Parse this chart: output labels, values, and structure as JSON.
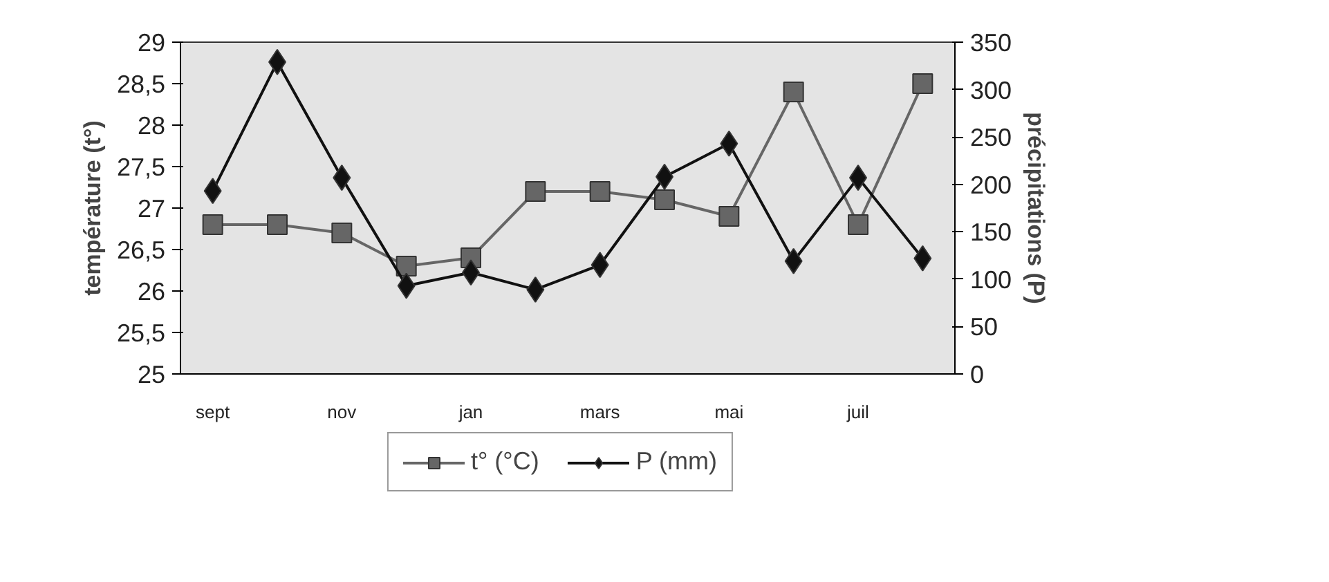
{
  "chart_data": {
    "type": "line",
    "categories": [
      "sept",
      null,
      "nov",
      null,
      "jan",
      null,
      "mars",
      null,
      "mai",
      null,
      "juil",
      null
    ],
    "ylabel": "température (t°)",
    "y2label": "précipitations (P)",
    "ylim": [
      25,
      29
    ],
    "yticks": [
      25,
      {
        "value": 25.5,
        "label": "25,5"
      },
      26,
      {
        "value": 26.5,
        "label": "26,5"
      },
      27,
      {
        "value": 27.5,
        "label": "27,5"
      },
      28,
      {
        "value": 28.5,
        "label": "28,5"
      },
      29
    ],
    "y2lim": [
      0,
      350
    ],
    "y2ticks": [
      0,
      50,
      100,
      150,
      200,
      250,
      300,
      350
    ],
    "series": [
      {
        "name": "t° (°C)",
        "color": "#666666",
        "marker": "square",
        "values": [
          26.8,
          26.8,
          26.7,
          26.3,
          26.4,
          27.2,
          27.2,
          27.1,
          26.9,
          28.4,
          26.8,
          28.5
        ]
      },
      {
        "name": "P (mm)",
        "color": "#111111",
        "marker": "diamond",
        "axis": "y2",
        "values": [
          193,
          329,
          207,
          93,
          107,
          89,
          115,
          208,
          243,
          119,
          207,
          122
        ]
      }
    ],
    "grid": false,
    "legend": "bottom",
    "line_style": "solid"
  }
}
